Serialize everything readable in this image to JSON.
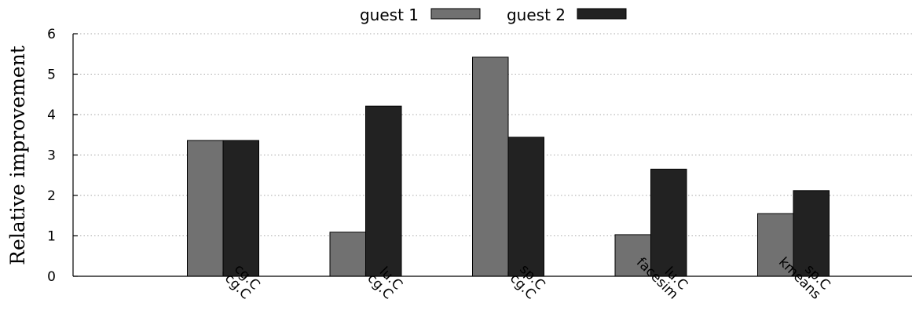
{
  "chart_data": {
    "type": "bar",
    "categories": [
      [
        "cg.C",
        "cg.C"
      ],
      [
        "lu.C",
        "cg.C"
      ],
      [
        "sp.C",
        "cg.C"
      ],
      [
        "lu.C",
        "facesim"
      ],
      [
        "sp.C",
        "kmeans"
      ]
    ],
    "series": [
      {
        "name": "guest 1",
        "values": [
          3.36,
          1.09,
          5.42,
          1.03,
          1.55
        ],
        "color": "#717171"
      },
      {
        "name": "guest 2",
        "values": [
          3.36,
          4.21,
          3.44,
          2.65,
          2.12
        ],
        "color": "#222222"
      }
    ],
    "ylabel": "Relative improvement",
    "ylim": [
      0,
      6
    ],
    "yticks": [
      0,
      1,
      2,
      3,
      4,
      5,
      6
    ],
    "grid": true,
    "legend_position": "top-center"
  }
}
